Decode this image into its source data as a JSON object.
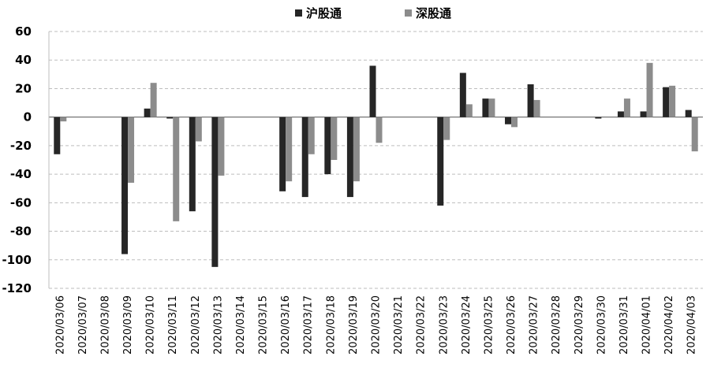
{
  "chart_data": {
    "type": "bar",
    "title": "",
    "xlabel": "",
    "ylabel": "",
    "ylim": [
      -120,
      60
    ],
    "yticks": [
      60,
      40,
      20,
      0,
      -20,
      -40,
      -60,
      -80,
      -100,
      -120
    ],
    "grid": "horizontal-dashed",
    "legend_position": "top-center",
    "categories": [
      "2020/03/06",
      "2020/03/07",
      "2020/03/08",
      "2020/03/09",
      "2020/03/10",
      "2020/03/11",
      "2020/03/12",
      "2020/03/13",
      "2020/03/14",
      "2020/03/15",
      "2020/03/16",
      "2020/03/17",
      "2020/03/18",
      "2020/03/19",
      "2020/03/20",
      "2020/03/21",
      "2020/03/22",
      "2020/03/23",
      "2020/03/24",
      "2020/03/25",
      "2020/03/26",
      "2020/03/27",
      "2020/03/28",
      "2020/03/29",
      "2020/03/30",
      "2020/03/31",
      "2020/04/01",
      "2020/04/02",
      "2020/04/03"
    ],
    "series": [
      {
        "name": "沪股通",
        "color": "#262626",
        "values": [
          -26,
          0,
          0,
          -96,
          6,
          -1,
          -66,
          -105,
          0,
          0,
          -52,
          -56,
          -40,
          -56,
          36,
          0,
          0,
          -62,
          31,
          13,
          -5,
          23,
          0,
          0,
          -1,
          4,
          4,
          21,
          5
        ]
      },
      {
        "name": "深股通",
        "color": "#8c8c8c",
        "values": [
          -3,
          0,
          0,
          -46,
          24,
          -73,
          -17,
          -41,
          0,
          0,
          -45,
          -26,
          -30,
          -45,
          -18,
          0,
          0,
          -16,
          9,
          13,
          -7,
          12,
          0,
          0,
          0,
          13,
          38,
          22,
          -24
        ]
      }
    ]
  }
}
